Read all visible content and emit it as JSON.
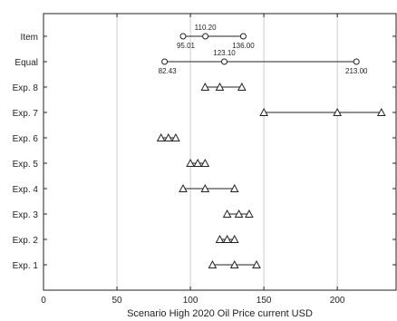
{
  "chart_data": {
    "type": "scatter",
    "title": "",
    "xlabel": "Scenario High 2020 Oil Price current USD",
    "ylabel": "",
    "xlim": [
      0,
      240
    ],
    "x_ticks": [
      0,
      50,
      100,
      150,
      200
    ],
    "grid": "vertical",
    "categories": [
      "Item",
      "Equal",
      "Exp. 8",
      "Exp. 7",
      "Exp. 6",
      "Exp. 5",
      "Exp. 4",
      "Exp. 3",
      "Exp. 2",
      "Exp. 1"
    ],
    "rows": [
      {
        "label": "Item",
        "marker": "circle",
        "points": [
          95.01,
          110.2,
          136.0
        ],
        "point_labels": [
          "95.01",
          "110.20",
          "136.00"
        ]
      },
      {
        "label": "Equal",
        "marker": "circle",
        "points": [
          82.43,
          123.1,
          213.0
        ],
        "point_labels": [
          "82.43",
          "123.10",
          "213.00"
        ]
      },
      {
        "label": "Exp. 8",
        "marker": "triangle",
        "points": [
          110,
          120,
          135
        ]
      },
      {
        "label": "Exp. 7",
        "marker": "triangle",
        "points": [
          150,
          200,
          230
        ]
      },
      {
        "label": "Exp. 6",
        "marker": "triangle",
        "points": [
          80,
          85,
          90
        ]
      },
      {
        "label": "Exp. 5",
        "marker": "triangle",
        "points": [
          100,
          105,
          110
        ]
      },
      {
        "label": "Exp. 4",
        "marker": "triangle",
        "points": [
          95,
          110,
          130
        ]
      },
      {
        "label": "Exp. 3",
        "marker": "triangle",
        "points": [
          125,
          133,
          140
        ]
      },
      {
        "label": "Exp. 2",
        "marker": "triangle",
        "points": [
          120,
          125,
          130
        ]
      },
      {
        "label": "Exp. 1",
        "marker": "triangle",
        "points": [
          115,
          130,
          145
        ]
      }
    ],
    "colors": {
      "line": "#222222",
      "grid": "#cccccc",
      "axis": "#222222",
      "marker_fill": "#ffffff"
    }
  }
}
